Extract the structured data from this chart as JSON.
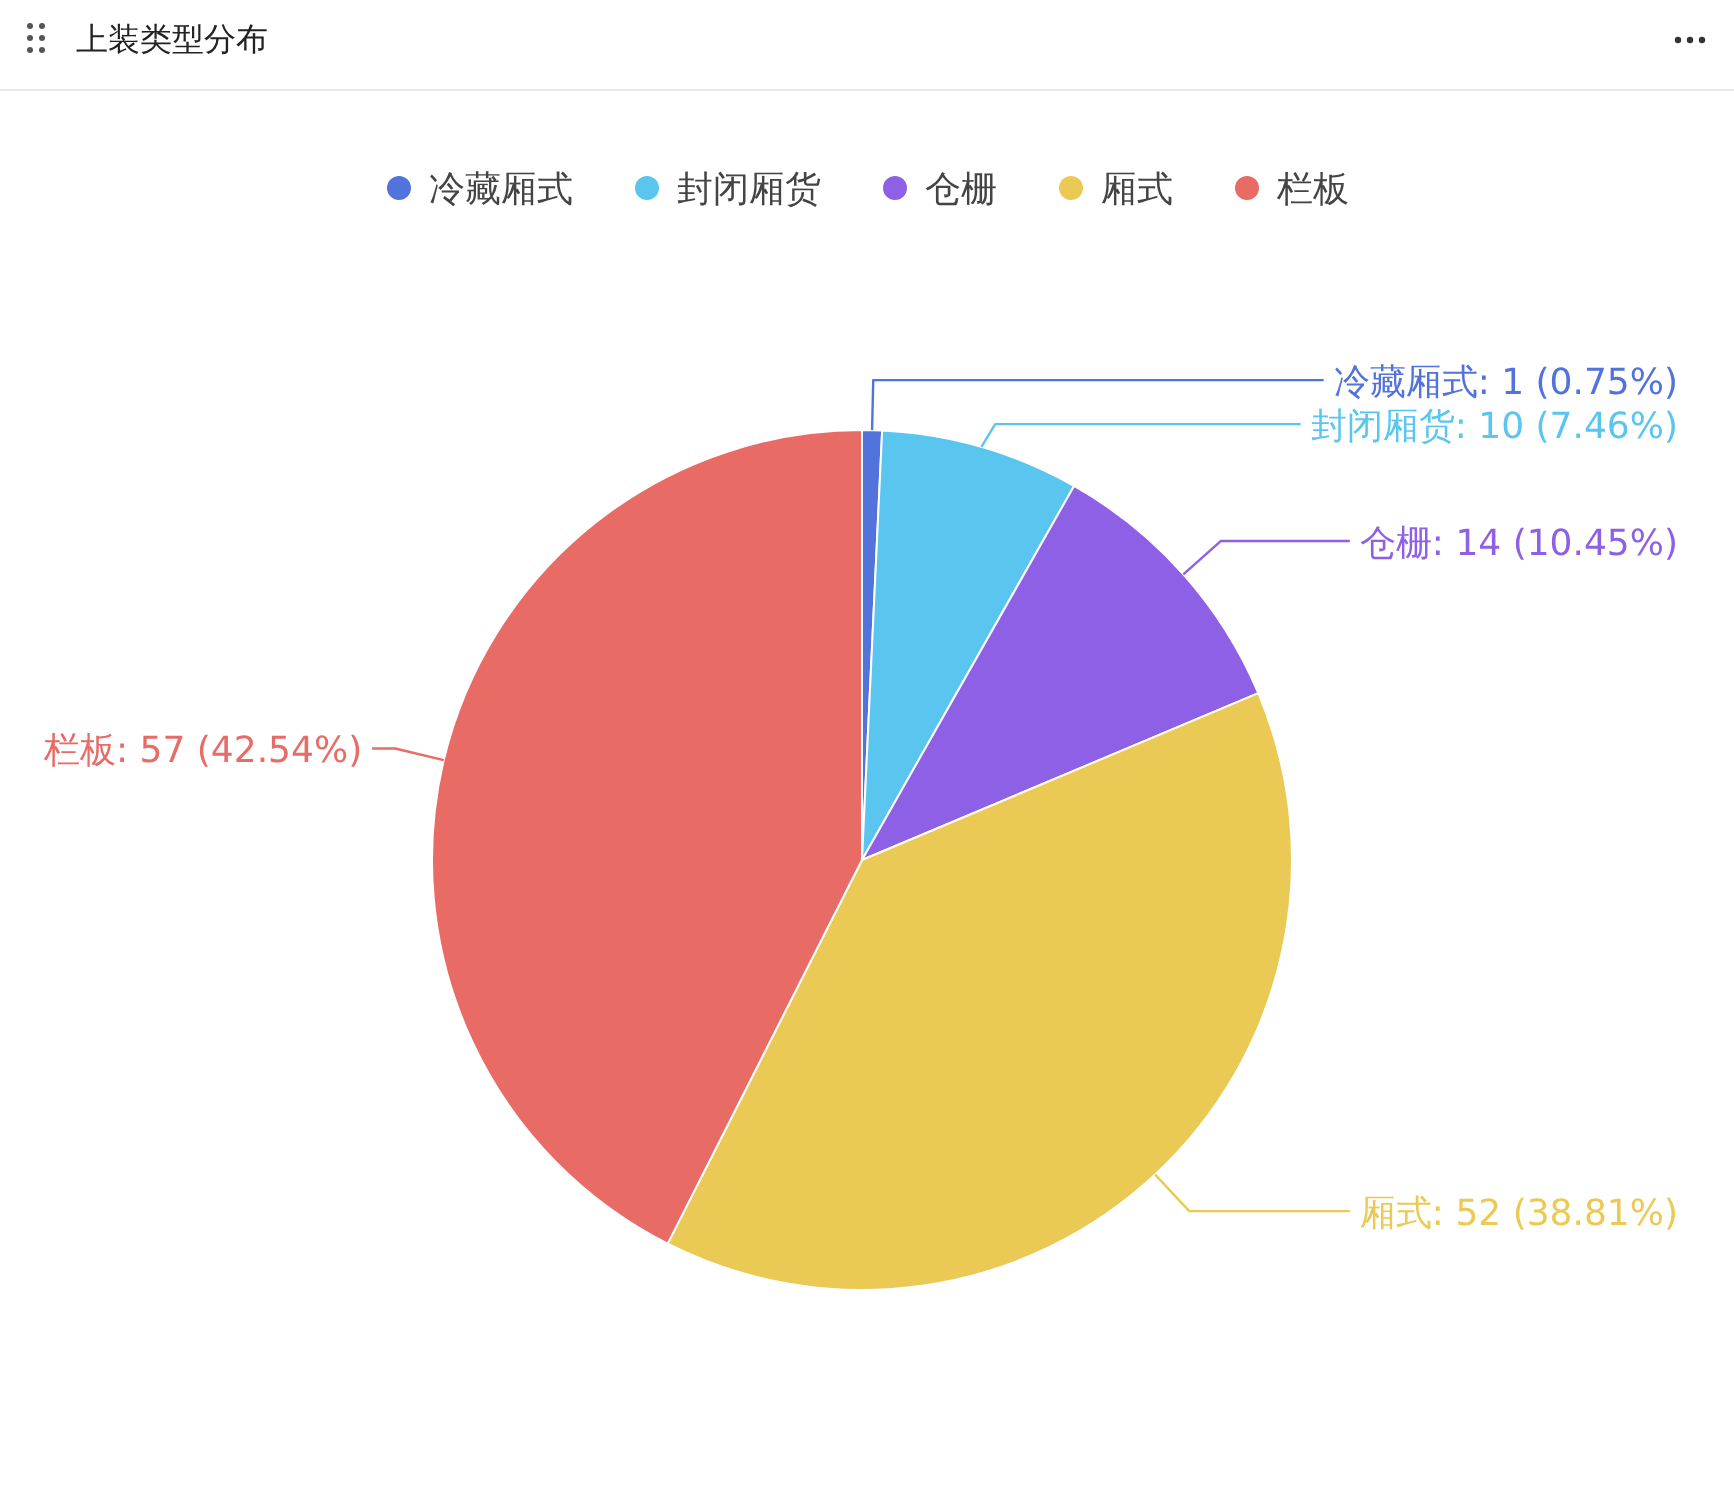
{
  "chart_data": {
    "type": "pie",
    "title": "上装类型分布",
    "categories": [
      "冷藏厢式",
      "封闭厢货",
      "仓栅",
      "厢式",
      "栏板"
    ],
    "values": [
      1,
      10,
      14,
      52,
      57
    ],
    "value_labels": [
      ": 1 (0.75%)",
      ": 10 (7.46%)",
      ": 14 (10.45%)",
      ": 52 (38.81%)",
      ": 57 (42.54%)"
    ],
    "colors": [
      "#5173db",
      "#5ac6ef",
      "#8e60e6",
      "#ebc955",
      "#e86b65"
    ],
    "legend": "top"
  }
}
